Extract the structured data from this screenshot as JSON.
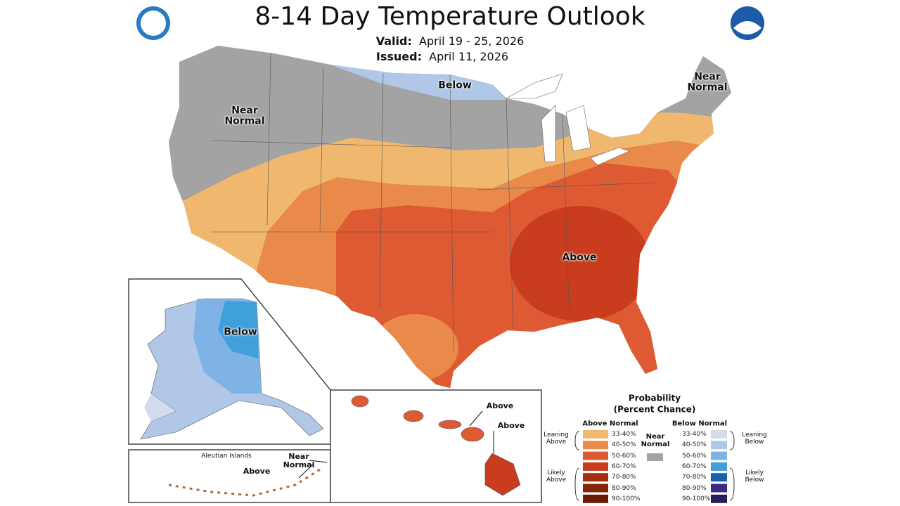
{
  "header": {
    "title": "8-14 Day Temperature Outlook",
    "valid_label": "Valid:",
    "valid": "April 19 - 25, 2026",
    "issued_label": "Issued:",
    "issued": "April 11, 2026"
  },
  "map_labels": {
    "conus_below": "Below",
    "conus_west": "Near Normal",
    "conus_northeast": "Near Normal",
    "conus_above": "Above",
    "alaska_below": "Below",
    "aleutian_title": "Aleutian Islands",
    "aleutian_near": "Near Normal",
    "aleutian_above": "Above",
    "hawaii_above_1": "Above",
    "hawaii_above_2": "Above"
  },
  "legend": {
    "title": [
      "Probability",
      "(Percent Chance)"
    ],
    "above_title": "Above Normal",
    "below_title": "Below Normal",
    "near_title": "Near Normal",
    "near_color": "#a3a3a3",
    "leaning_above": "Leaning Above",
    "likely_above": "Likely Above",
    "leaning_below": "Leaning Below",
    "likely_below": "Likely Below",
    "above": [
      {
        "label": "33-40%",
        "color": "#f0b86e"
      },
      {
        "label": "40-50%",
        "color": "#e98a4b"
      },
      {
        "label": "50-60%",
        "color": "#dd5a33"
      },
      {
        "label": "60-70%",
        "color": "#c93d1e"
      },
      {
        "label": "70-80%",
        "color": "#a42d10"
      },
      {
        "label": "80-90%",
        "color": "#862407"
      },
      {
        "label": "90-100%",
        "color": "#6b1a05"
      }
    ],
    "below": [
      {
        "label": "33-40%",
        "color": "#d3dcef"
      },
      {
        "label": "40-50%",
        "color": "#b1c7e8"
      },
      {
        "label": "50-60%",
        "color": "#7fb3e6"
      },
      {
        "label": "60-70%",
        "color": "#3fa0dc"
      },
      {
        "label": "70-80%",
        "color": "#1663a8"
      },
      {
        "label": "80-90%",
        "color": "#3e2a84"
      },
      {
        "label": "90-100%",
        "color": "#2a1b5c"
      }
    ]
  }
}
